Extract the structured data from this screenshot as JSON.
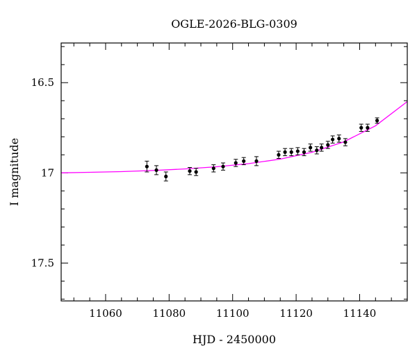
{
  "chart_data": {
    "type": "scatter",
    "title": "OGLE-2026-BLG-0309",
    "xlabel": "HJD - 2450000",
    "ylabel": "I magnitude",
    "xlim": [
      11046,
      11155
    ],
    "ylim": [
      17.71,
      16.28
    ],
    "y_inverted": true,
    "xticks": [
      11060,
      11080,
      11100,
      11120,
      11140
    ],
    "yticks": [
      16.5,
      17,
      17.5
    ],
    "xtick_labels": [
      "11060",
      "11080",
      "11100",
      "11120",
      "11140"
    ],
    "ytick_labels": [
      "16.5",
      "17",
      "17.5"
    ],
    "grid": false,
    "legend": "none",
    "colors": {
      "points": "#000000",
      "model": "#ff00ff"
    },
    "series": [
      {
        "type": "scatter_errorbar",
        "x": [
          11073.0,
          11076.0,
          11079.0,
          11086.5,
          11088.5,
          11094.0,
          11097.0,
          11101.0,
          11103.5,
          11107.5,
          11114.5,
          11116.5,
          11118.5,
          11120.5,
          11122.5,
          11124.5,
          11126.5,
          11128.0,
          11130.0,
          11131.5,
          11133.5,
          11135.5,
          11140.5,
          11142.5,
          11145.5
        ],
        "y": [
          16.965,
          16.985,
          17.02,
          16.99,
          16.995,
          16.975,
          16.965,
          16.945,
          16.935,
          16.935,
          16.9,
          16.885,
          16.885,
          16.88,
          16.885,
          16.86,
          16.875,
          16.86,
          16.845,
          16.815,
          16.81,
          16.83,
          16.75,
          16.75,
          16.71
        ],
        "yerr": [
          0.03,
          0.025,
          0.025,
          0.02,
          0.02,
          0.02,
          0.02,
          0.02,
          0.02,
          0.025,
          0.02,
          0.02,
          0.02,
          0.02,
          0.02,
          0.02,
          0.02,
          0.02,
          0.02,
          0.02,
          0.02,
          0.02,
          0.02,
          0.02,
          0.015
        ]
      },
      {
        "type": "line",
        "x": [
          11046,
          11055,
          11065,
          11075,
          11085,
          11095,
          11105,
          11115,
          11125,
          11135,
          11145,
          11155
        ],
        "y": [
          17.0,
          16.997,
          16.993,
          16.987,
          16.978,
          16.966,
          16.949,
          16.924,
          16.886,
          16.828,
          16.739,
          16.605
        ]
      }
    ]
  }
}
